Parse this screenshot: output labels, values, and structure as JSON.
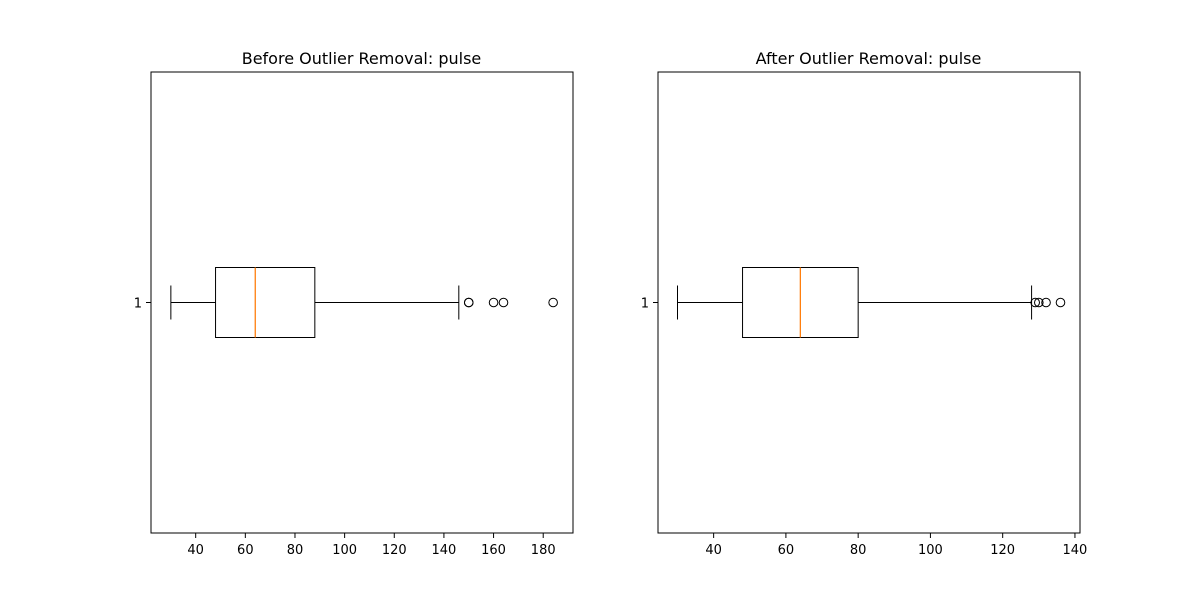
{
  "chart_data": [
    {
      "type": "boxplot",
      "orientation": "horizontal",
      "title": "Before Outlier Removal: pulse",
      "xlabel": "",
      "ylabel": "",
      "xlim": [
        22,
        192
      ],
      "xticks": [
        40,
        60,
        80,
        100,
        120,
        140,
        160,
        180
      ],
      "xtick_labels": [
        "40",
        "60",
        "80",
        "100",
        "120",
        "140",
        "160",
        "180"
      ],
      "yticks": [
        1
      ],
      "ytick_labels": [
        "1"
      ],
      "grid": false,
      "boxes": [
        {
          "position": 1,
          "whisker_low": 30,
          "q1": 48,
          "median": 64,
          "q3": 88,
          "whisker_high": 146,
          "outliers": [
            150,
            150,
            160,
            164,
            184
          ]
        }
      ],
      "colors": {
        "box": "#000000",
        "median": "#ff7f0e",
        "outlier_edge": "#000000"
      }
    },
    {
      "type": "boxplot",
      "orientation": "horizontal",
      "title": "After Outlier Removal: pulse",
      "xlabel": "",
      "ylabel": "",
      "xlim": [
        24.6,
        141.4
      ],
      "xticks": [
        40,
        60,
        80,
        100,
        120,
        140
      ],
      "xtick_labels": [
        "40",
        "60",
        "80",
        "100",
        "120",
        "140"
      ],
      "yticks": [
        1
      ],
      "ytick_labels": [
        "1"
      ],
      "grid": false,
      "boxes": [
        {
          "position": 1,
          "whisker_low": 30,
          "q1": 48,
          "median": 64,
          "q3": 80,
          "whisker_high": 128,
          "outliers": [
            129,
            130,
            132,
            136
          ]
        }
      ],
      "colors": {
        "box": "#000000",
        "median": "#ff7f0e",
        "outlier_edge": "#000000"
      }
    }
  ]
}
